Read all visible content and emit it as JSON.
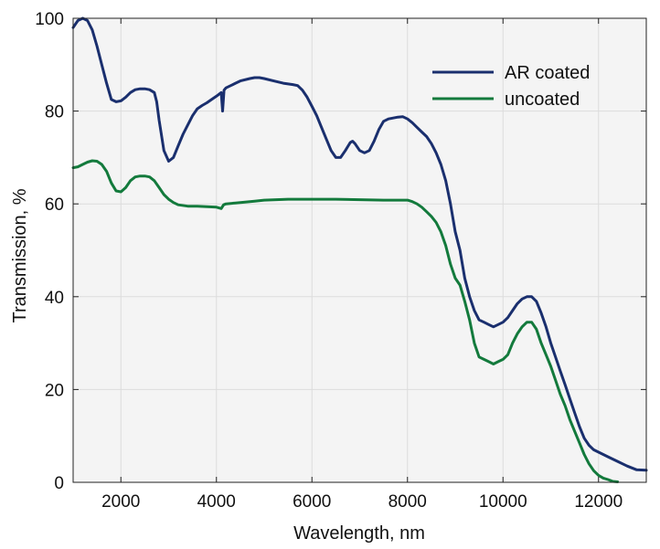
{
  "chart_data": {
    "type": "line",
    "xlabel": "Wavelength, nm",
    "ylabel": "Transmission, %",
    "xlim": [
      1000,
      13000
    ],
    "ylim": [
      0,
      100
    ],
    "xticks": [
      2000,
      4000,
      6000,
      8000,
      10000,
      12000
    ],
    "yticks": [
      0,
      20,
      40,
      60,
      80,
      100
    ],
    "grid": true,
    "legend_position": "top-right",
    "series": [
      {
        "name": "AR coated",
        "color": "#1a2f6e",
        "points": [
          [
            1000,
            98
          ],
          [
            1100,
            99.5
          ],
          [
            1200,
            100
          ],
          [
            1300,
            99.5
          ],
          [
            1400,
            97.5
          ],
          [
            1500,
            94
          ],
          [
            1600,
            90
          ],
          [
            1700,
            86
          ],
          [
            1800,
            82.5
          ],
          [
            1900,
            82
          ],
          [
            2000,
            82.2
          ],
          [
            2100,
            83
          ],
          [
            2200,
            84
          ],
          [
            2300,
            84.6
          ],
          [
            2400,
            84.8
          ],
          [
            2500,
            84.8
          ],
          [
            2600,
            84.6
          ],
          [
            2700,
            84
          ],
          [
            2750,
            82
          ],
          [
            2800,
            78
          ],
          [
            2900,
            71.5
          ],
          [
            3000,
            69.2
          ],
          [
            3100,
            70
          ],
          [
            3200,
            72.5
          ],
          [
            3300,
            75
          ],
          [
            3400,
            77
          ],
          [
            3500,
            79
          ],
          [
            3600,
            80.5
          ],
          [
            3700,
            81.2
          ],
          [
            3800,
            81.8
          ],
          [
            3900,
            82.5
          ],
          [
            4000,
            83.2
          ],
          [
            4100,
            84
          ],
          [
            4130,
            80
          ],
          [
            4160,
            84.5
          ],
          [
            4200,
            85
          ],
          [
            4300,
            85.5
          ],
          [
            4400,
            86
          ],
          [
            4500,
            86.5
          ],
          [
            4700,
            87
          ],
          [
            4800,
            87.2
          ],
          [
            4900,
            87.2
          ],
          [
            5000,
            87
          ],
          [
            5200,
            86.5
          ],
          [
            5400,
            86
          ],
          [
            5600,
            85.7
          ],
          [
            5700,
            85.5
          ],
          [
            5800,
            84.5
          ],
          [
            5900,
            83
          ],
          [
            6000,
            81
          ],
          [
            6100,
            79
          ],
          [
            6200,
            76.5
          ],
          [
            6300,
            74
          ],
          [
            6400,
            71.5
          ],
          [
            6500,
            70
          ],
          [
            6600,
            70
          ],
          [
            6700,
            71.5
          ],
          [
            6800,
            73.2
          ],
          [
            6850,
            73.5
          ],
          [
            6900,
            73
          ],
          [
            7000,
            71.5
          ],
          [
            7100,
            71
          ],
          [
            7200,
            71.5
          ],
          [
            7300,
            73.5
          ],
          [
            7400,
            76
          ],
          [
            7500,
            77.8
          ],
          [
            7600,
            78.3
          ],
          [
            7700,
            78.5
          ],
          [
            7800,
            78.7
          ],
          [
            7900,
            78.8
          ],
          [
            8000,
            78.3
          ],
          [
            8100,
            77.5
          ],
          [
            8200,
            76.5
          ],
          [
            8300,
            75.5
          ],
          [
            8400,
            74.5
          ],
          [
            8500,
            73
          ],
          [
            8600,
            71
          ],
          [
            8700,
            68.5
          ],
          [
            8800,
            65
          ],
          [
            8900,
            60
          ],
          [
            9000,
            54
          ],
          [
            9100,
            50
          ],
          [
            9200,
            44
          ],
          [
            9300,
            40
          ],
          [
            9400,
            37
          ],
          [
            9500,
            35
          ],
          [
            9600,
            34.5
          ],
          [
            9700,
            34
          ],
          [
            9800,
            33.5
          ],
          [
            9900,
            34
          ],
          [
            10000,
            34.5
          ],
          [
            10100,
            35.5
          ],
          [
            10200,
            37
          ],
          [
            10300,
            38.5
          ],
          [
            10400,
            39.5
          ],
          [
            10500,
            40
          ],
          [
            10600,
            40
          ],
          [
            10700,
            39
          ],
          [
            10800,
            36.5
          ],
          [
            10900,
            33.5
          ],
          [
            11000,
            30
          ],
          [
            11100,
            27
          ],
          [
            11200,
            24
          ],
          [
            11300,
            21
          ],
          [
            11400,
            18
          ],
          [
            11500,
            15
          ],
          [
            11600,
            12
          ],
          [
            11700,
            9.5
          ],
          [
            11800,
            8
          ],
          [
            11900,
            7
          ],
          [
            12000,
            6.5
          ],
          [
            12200,
            5.5
          ],
          [
            12400,
            4.5
          ],
          [
            12600,
            3.5
          ],
          [
            12800,
            2.7
          ],
          [
            13000,
            2.6
          ]
        ]
      },
      {
        "name": "uncoated",
        "color": "#137a3c",
        "points": [
          [
            1000,
            67.8
          ],
          [
            1100,
            68
          ],
          [
            1200,
            68.5
          ],
          [
            1300,
            69
          ],
          [
            1400,
            69.3
          ],
          [
            1500,
            69.2
          ],
          [
            1600,
            68.5
          ],
          [
            1700,
            67
          ],
          [
            1800,
            64.5
          ],
          [
            1900,
            62.8
          ],
          [
            2000,
            62.6
          ],
          [
            2100,
            63.5
          ],
          [
            2200,
            65
          ],
          [
            2300,
            65.8
          ],
          [
            2400,
            66
          ],
          [
            2500,
            66
          ],
          [
            2600,
            65.8
          ],
          [
            2700,
            65
          ],
          [
            2800,
            63.5
          ],
          [
            2900,
            62
          ],
          [
            3000,
            61
          ],
          [
            3100,
            60.3
          ],
          [
            3200,
            59.8
          ],
          [
            3400,
            59.5
          ],
          [
            3600,
            59.5
          ],
          [
            3800,
            59.4
          ],
          [
            4000,
            59.3
          ],
          [
            4100,
            59
          ],
          [
            4150,
            59.8
          ],
          [
            4200,
            60
          ],
          [
            4400,
            60.2
          ],
          [
            4600,
            60.4
          ],
          [
            4800,
            60.6
          ],
          [
            5000,
            60.8
          ],
          [
            5500,
            61
          ],
          [
            6000,
            61
          ],
          [
            6500,
            61
          ],
          [
            7000,
            60.9
          ],
          [
            7500,
            60.8
          ],
          [
            7800,
            60.8
          ],
          [
            8000,
            60.8
          ],
          [
            8100,
            60.5
          ],
          [
            8200,
            60
          ],
          [
            8300,
            59.3
          ],
          [
            8400,
            58.3
          ],
          [
            8500,
            57.3
          ],
          [
            8600,
            56
          ],
          [
            8700,
            54
          ],
          [
            8800,
            51
          ],
          [
            8900,
            47
          ],
          [
            9000,
            44
          ],
          [
            9100,
            42.5
          ],
          [
            9200,
            39
          ],
          [
            9300,
            35
          ],
          [
            9400,
            30
          ],
          [
            9500,
            27
          ],
          [
            9600,
            26.5
          ],
          [
            9700,
            26
          ],
          [
            9800,
            25.5
          ],
          [
            9900,
            26
          ],
          [
            10000,
            26.5
          ],
          [
            10100,
            27.5
          ],
          [
            10200,
            30
          ],
          [
            10300,
            32
          ],
          [
            10400,
            33.5
          ],
          [
            10500,
            34.5
          ],
          [
            10600,
            34.5
          ],
          [
            10700,
            33
          ],
          [
            10800,
            30
          ],
          [
            10900,
            27.5
          ],
          [
            11000,
            25
          ],
          [
            11100,
            22
          ],
          [
            11200,
            19
          ],
          [
            11300,
            16.5
          ],
          [
            11400,
            13.5
          ],
          [
            11500,
            11
          ],
          [
            11600,
            8.5
          ],
          [
            11700,
            6
          ],
          [
            11800,
            4
          ],
          [
            11900,
            2.5
          ],
          [
            12000,
            1.5
          ],
          [
            12100,
            0.9
          ],
          [
            12200,
            0.6
          ],
          [
            12300,
            0.2
          ],
          [
            12400,
            0.1
          ]
        ]
      }
    ]
  }
}
